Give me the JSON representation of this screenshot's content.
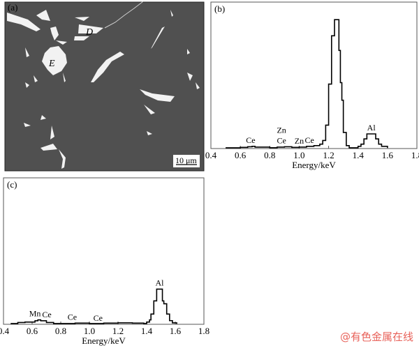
{
  "figure": {
    "panel_a": {
      "label": "(a)",
      "particle_labels": [
        "D",
        "E"
      ],
      "scale_bar": "10 μm"
    },
    "watermark": "@有色金属在线"
  },
  "chart_data": [
    {
      "type": "line",
      "panel": "(b)",
      "xlabel": "Energy/keV",
      "ylabel": "",
      "xlim": [
        0.4,
        1.8
      ],
      "xticks": [
        "0.4",
        "0.6",
        "0.8",
        "1.0",
        "1.2",
        "1.4",
        "1.6",
        "1.8"
      ],
      "y_units": "relative intensity (%)",
      "ylim": [
        0,
        100
      ],
      "step": true,
      "x": [
        0.5,
        0.55,
        0.6,
        0.65,
        0.68,
        0.7,
        0.8,
        0.85,
        0.9,
        0.95,
        1.0,
        1.05,
        1.1,
        1.14,
        1.16,
        1.18,
        1.2,
        1.22,
        1.24,
        1.26,
        1.27,
        1.28,
        1.29,
        1.3,
        1.32,
        1.34,
        1.38,
        1.4,
        1.42,
        1.44,
        1.46,
        1.48,
        1.5,
        1.52,
        1.54,
        1.56,
        1.6
      ],
      "y": [
        0.5,
        0.5,
        0.8,
        1.2,
        1.5,
        1.0,
        0.6,
        1.0,
        1.2,
        0.8,
        1.0,
        1.5,
        2.0,
        3.0,
        5.5,
        16,
        44,
        77,
        88,
        88,
        67,
        45,
        33,
        11,
        2,
        0.5,
        0.5,
        1.5,
        3,
        6.6,
        10,
        10,
        10,
        6.6,
        3,
        1.5,
        0.5
      ],
      "annotations": [
        {
          "text": "Ce",
          "x": 0.67
        },
        {
          "text": "Ce",
          "x": 0.88
        },
        {
          "text": "Zn",
          "x": 0.88
        },
        {
          "text": "Zn",
          "x": 1.0
        },
        {
          "text": "Ce",
          "x": 1.07
        },
        {
          "text": "Al",
          "x": 1.49
        }
      ]
    },
    {
      "type": "line",
      "panel": "(c)",
      "xlabel": "Energy/keV",
      "ylabel": "",
      "xlim": [
        0.4,
        1.8
      ],
      "xticks": [
        "0.4",
        "0.6",
        "0.8",
        "1.0",
        "1.2",
        "1.4",
        "1.6",
        "1.8"
      ],
      "y_units": "relative intensity (%)",
      "ylim": [
        0,
        100
      ],
      "step": true,
      "x": [
        0.45,
        0.5,
        0.55,
        0.6,
        0.62,
        0.64,
        0.66,
        0.7,
        0.75,
        0.8,
        0.9,
        0.95,
        1.0,
        1.1,
        1.2,
        1.3,
        1.38,
        1.4,
        1.42,
        1.43,
        1.45,
        1.47,
        1.48,
        1.5,
        1.51,
        1.52,
        1.54,
        1.56,
        1.58,
        1.61
      ],
      "y": [
        0.5,
        1.2,
        1.5,
        1.5,
        2.4,
        3.0,
        2.4,
        1.2,
        0.5,
        0.5,
        0.8,
        0.8,
        0.5,
        0.8,
        1.0,
        0.8,
        0.5,
        1.5,
        3,
        7,
        16,
        24,
        24,
        24,
        16,
        14,
        7,
        2.5,
        1.0,
        0.3
      ],
      "annotations": [
        {
          "text": "Mn",
          "x": 0.62
        },
        {
          "text": "Ce",
          "x": 0.67
        },
        {
          "text": "Ce",
          "x": 0.88
        },
        {
          "text": "Ce",
          "x": 1.06
        },
        {
          "text": "Al",
          "x": 1.49
        }
      ]
    }
  ]
}
